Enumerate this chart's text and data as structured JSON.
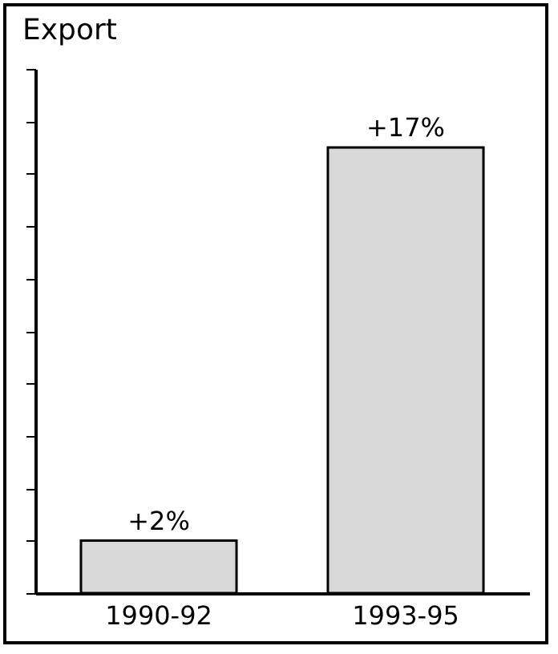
{
  "chart_data": {
    "type": "bar",
    "title": "Export",
    "categories": [
      "1990-92",
      "1993-95"
    ],
    "values": [
      2,
      17
    ],
    "value_labels": [
      "+2%",
      "+17%"
    ],
    "color": "#d9d9d9",
    "ylim": [
      0,
      20
    ],
    "tick_labels": "x"
  }
}
